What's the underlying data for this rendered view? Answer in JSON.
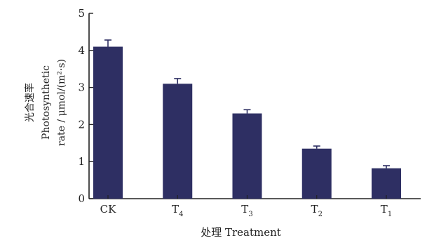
{
  "chart_data": {
    "type": "bar",
    "categories": [
      {
        "base": "CK",
        "sub": ""
      },
      {
        "base": "T",
        "sub": "4"
      },
      {
        "base": "T",
        "sub": "3"
      },
      {
        "base": "T",
        "sub": "2"
      },
      {
        "base": "T",
        "sub": "1"
      }
    ],
    "values": [
      4.1,
      3.1,
      2.3,
      1.35,
      0.82
    ],
    "errors": [
      0.18,
      0.14,
      0.1,
      0.07,
      0.07
    ],
    "xlabel": "处理 Treatment",
    "ylabel_lines": [
      "光合速率",
      "Photosynthetic",
      "rate / μmol/(m²·s)"
    ],
    "ylim": [
      0,
      5
    ],
    "yticks": [
      0,
      1,
      2,
      3,
      4,
      5
    ],
    "grid": false,
    "bar_color": "#2e2f63"
  }
}
